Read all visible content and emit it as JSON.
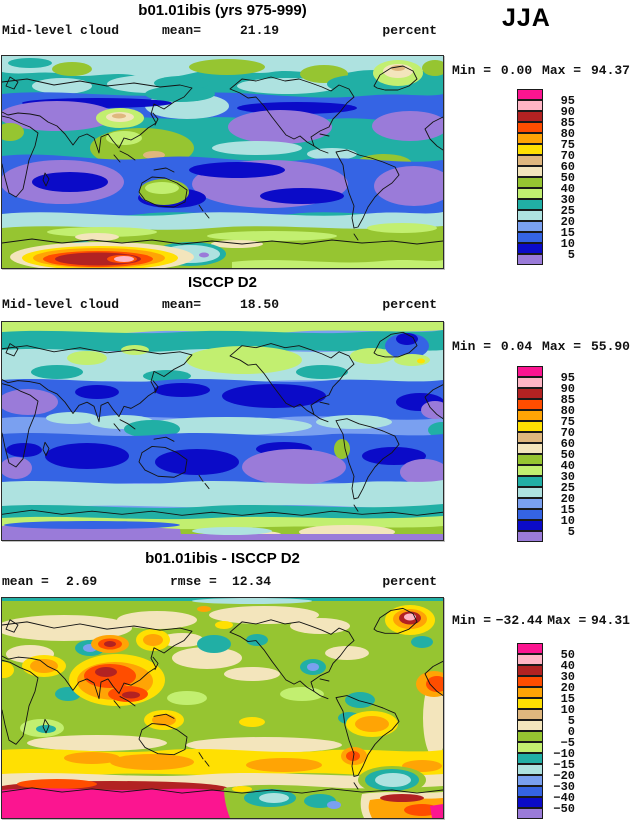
{
  "display": {
    "season_label": "JJA",
    "legend_colors": [
      "#FB1590",
      "#FFB5C5",
      "#B22222",
      "#FF4D00",
      "#FFA405",
      "#FFE002",
      "#DFB77E",
      "#F3E5BC",
      "#96C531",
      "#C2EF70",
      "#21AFA5",
      "#AEE2E0",
      "#7AA0F0",
      "#3564E4",
      "#0B0BC8",
      "#9A7BD9"
    ],
    "panels": [
      {
        "title": "b01.01ibis (yrs 975-999)",
        "left_label": "Mid-level cloud",
        "stats": [
          {
            "label": "mean=",
            "value": "21.19"
          }
        ],
        "units": "percent",
        "min_label": "Min =",
        "min_value": "0.00",
        "max_label": "Max =",
        "max_value": "94.37",
        "legend_labels": [
          "95",
          "90",
          "85",
          "80",
          "75",
          "70",
          "60",
          "50",
          "40",
          "30",
          "25",
          "20",
          "15",
          "10",
          "5"
        ]
      },
      {
        "title": "ISCCP D2",
        "left_label": "Mid-level cloud",
        "stats": [
          {
            "label": "mean=",
            "value": "18.50"
          }
        ],
        "units": "percent",
        "min_label": "Min =",
        "min_value": "0.04",
        "max_label": "Max =",
        "max_value": "55.90",
        "legend_labels": [
          "95",
          "90",
          "85",
          "80",
          "75",
          "70",
          "60",
          "50",
          "40",
          "30",
          "25",
          "20",
          "15",
          "10",
          "5"
        ]
      },
      {
        "title": "b01.01ibis - ISCCP D2",
        "left_label": "",
        "stats": [
          {
            "label": "mean =",
            "value": "2.69"
          },
          {
            "label": "rmse =",
            "value": "12.34"
          }
        ],
        "units": "percent",
        "min_label": "Min =",
        "min_value": "−32.44",
        "max_label": "Max =",
        "max_value": "94.31",
        "legend_labels": [
          "50",
          "40",
          "30",
          "20",
          "15",
          "10",
          "5",
          "0",
          "−5",
          "−10",
          "−15",
          "−20",
          "−30",
          "−40",
          "−50"
        ]
      }
    ]
  },
  "chart_data": [
    {
      "type": "heatmap",
      "panel": "model",
      "title": "b01.01ibis (yrs 975-999)",
      "variable": "Mid-level cloud",
      "season": "JJA",
      "units": "percent",
      "projection": "equirectangular global (lat -90..90, lon 0..360)",
      "stats": {
        "mean": 21.19,
        "min": 0.0,
        "max": 94.37
      },
      "contour_levels": [
        5,
        10,
        15,
        20,
        25,
        30,
        40,
        50,
        60,
        70,
        75,
        80,
        85,
        90,
        95
      ],
      "palette_top_to_bottom": [
        "#FB1590",
        "#FFB5C5",
        "#B22222",
        "#FF4D00",
        "#FFA405",
        "#FFE002",
        "#DFB77E",
        "#F3E5BC",
        "#96C531",
        "#C2EF70",
        "#21AFA5",
        "#AEE2E0",
        "#7AA0F0",
        "#3564E4",
        "#0B0BC8",
        "#9A7BD9"
      ],
      "legend_position": "right"
    },
    {
      "type": "heatmap",
      "panel": "observation",
      "title": "ISCCP D2",
      "variable": "Mid-level cloud",
      "season": "JJA",
      "units": "percent",
      "projection": "equirectangular global (lat -90..90, lon 0..360)",
      "stats": {
        "mean": 18.5,
        "min": 0.04,
        "max": 55.9
      },
      "contour_levels": [
        5,
        10,
        15,
        20,
        25,
        30,
        40,
        50,
        60,
        70,
        75,
        80,
        85,
        90,
        95
      ],
      "palette_top_to_bottom": [
        "#FB1590",
        "#FFB5C5",
        "#B22222",
        "#FF4D00",
        "#FFA405",
        "#FFE002",
        "#DFB77E",
        "#F3E5BC",
        "#96C531",
        "#C2EF70",
        "#21AFA5",
        "#AEE2E0",
        "#7AA0F0",
        "#3564E4",
        "#0B0BC8",
        "#9A7BD9"
      ],
      "legend_position": "right"
    },
    {
      "type": "heatmap",
      "panel": "difference",
      "title": "b01.01ibis - ISCCP D2",
      "variable": "Mid-level cloud difference (model minus ISCCP D2)",
      "season": "JJA",
      "units": "percent",
      "projection": "equirectangular global (lat -90..90, lon 0..360)",
      "stats": {
        "mean": 2.69,
        "rmse": 12.34,
        "min": -32.44,
        "max": 94.31
      },
      "contour_levels": [
        -50,
        -40,
        -30,
        -20,
        -15,
        -10,
        -5,
        0,
        5,
        10,
        15,
        20,
        30,
        40,
        50
      ],
      "palette_top_to_bottom": [
        "#FB1590",
        "#FFB5C5",
        "#B22222",
        "#FF4D00",
        "#FFA405",
        "#FFE002",
        "#DFB77E",
        "#F3E5BC",
        "#96C531",
        "#C2EF70",
        "#21AFA5",
        "#AEE2E0",
        "#7AA0F0",
        "#3564E4",
        "#0B0BC8",
        "#9A7BD9"
      ],
      "legend_position": "right"
    }
  ]
}
